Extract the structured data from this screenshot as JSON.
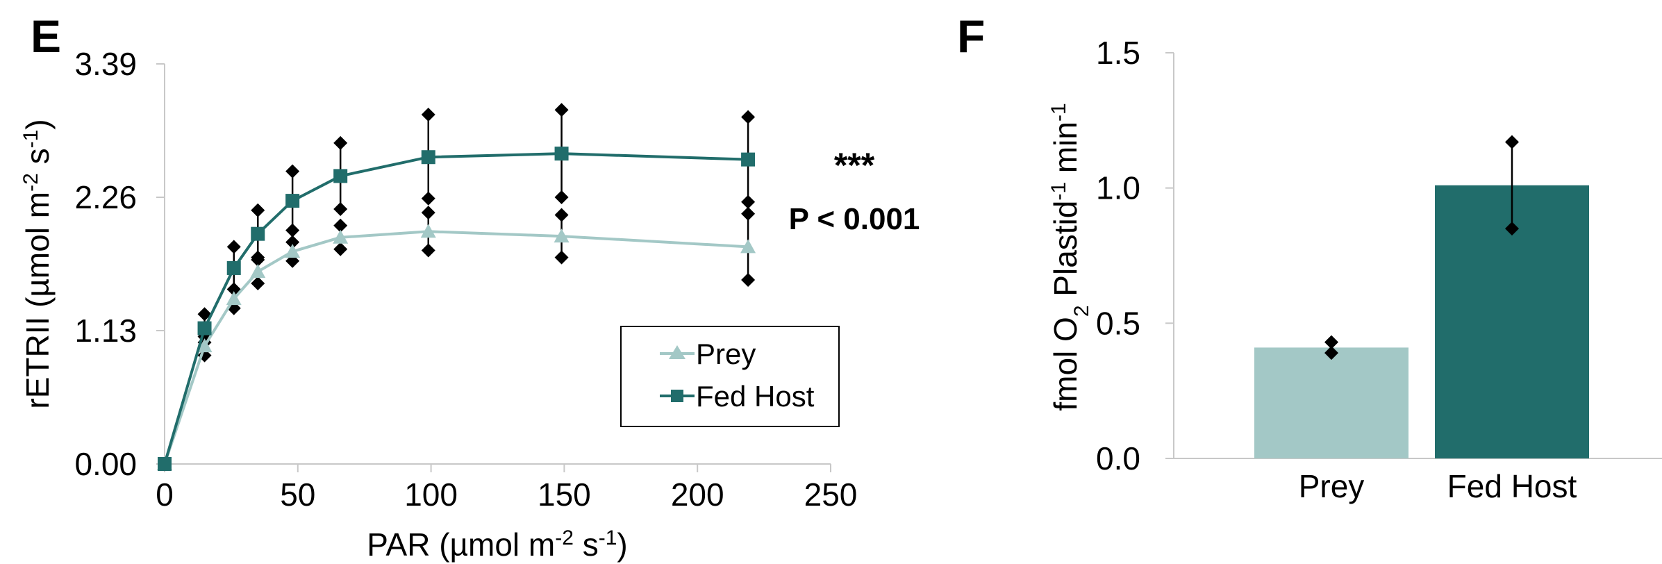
{
  "chart_data": [
    {
      "panel": "E",
      "type": "line",
      "xlabel": "PAR (µmol m",
      "xlabel_sup1": "-2",
      "xlabel_mid": " s",
      "xlabel_sup2": "-1",
      "xlabel_end": ")",
      "ylabel": "rETRII (µmol m",
      "ylabel_sup1": "-2",
      "ylabel_mid": " s",
      "ylabel_sup2": "-1",
      "ylabel_end": ")",
      "xlim": [
        0,
        250
      ],
      "ylim": [
        0,
        3.39
      ],
      "xticks": [
        0,
        50,
        100,
        150,
        200,
        250
      ],
      "xtick_labels": [
        "0",
        "50",
        "100",
        "150",
        "200",
        "250"
      ],
      "yticks": [
        0,
        1.13,
        2.26,
        3.39
      ],
      "ytick_labels": [
        "0.00",
        "1.13",
        "2.26",
        "3.39"
      ],
      "x": [
        0,
        15,
        26,
        35,
        48,
        66,
        99,
        149,
        219
      ],
      "series": [
        {
          "name": "Prey",
          "marker": "triangle",
          "color": "#a3c8c6",
          "values": [
            0.0,
            1.0,
            1.4,
            1.63,
            1.8,
            1.92,
            1.97,
            1.93,
            1.84
          ],
          "err_low": [
            0.0,
            0.08,
            0.08,
            0.1,
            0.08,
            0.1,
            0.16,
            0.18,
            0.28
          ],
          "err_high": [
            0.0,
            0.08,
            0.08,
            0.1,
            0.08,
            0.1,
            0.16,
            0.18,
            0.28
          ]
        },
        {
          "name": "Fed Host",
          "marker": "square",
          "color": "#216d6b",
          "values": [
            0.0,
            1.15,
            1.66,
            1.95,
            2.23,
            2.44,
            2.6,
            2.63,
            2.58
          ],
          "err_low": [
            0.0,
            0.12,
            0.18,
            0.2,
            0.25,
            0.28,
            0.35,
            0.37,
            0.36
          ],
          "err_high": [
            0.0,
            0.12,
            0.18,
            0.2,
            0.25,
            0.28,
            0.36,
            0.37,
            0.36
          ]
        }
      ],
      "legend_position": "lower-right",
      "annotation_stars": "***",
      "annotation_p": "P < 0.001",
      "grid": false
    },
    {
      "panel": "F",
      "type": "bar",
      "categories": [
        "Prey",
        "Fed Host"
      ],
      "values": [
        0.41,
        1.01
      ],
      "err_low": [
        0.02,
        0.16
      ],
      "err_high": [
        0.02,
        0.16
      ],
      "colors": [
        "#a3c8c6",
        "#216d6b"
      ],
      "ylabel_parts": [
        "fmol O",
        "2",
        " Plastid",
        "-1",
        " min",
        "-1"
      ],
      "ylim": [
        0,
        1.5
      ],
      "yticks": [
        0,
        0.5,
        1.0,
        1.5
      ],
      "ytick_labels": [
        "0.0",
        "0.5",
        "1.0",
        "1.5"
      ],
      "grid": false
    }
  ]
}
